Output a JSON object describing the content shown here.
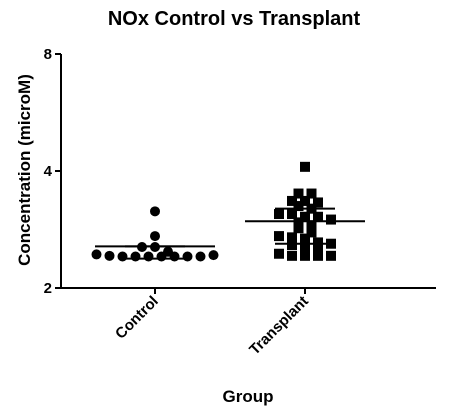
{
  "chart_data": {
    "type": "scatter",
    "title": "NOx Control vs Transplant",
    "xlabel": "Group",
    "ylabel": "Concentration  (microM)",
    "ylim": [
      2,
      8
    ],
    "yticks": [
      2,
      4,
      8
    ],
    "ytick_labels": [
      "2",
      "4",
      "8"
    ],
    "y_scale": "log",
    "categories": [
      "Control",
      "Transplant"
    ],
    "grid": false,
    "legend": "none",
    "series": [
      {
        "category": "Control",
        "marker": "circle",
        "color": "#000000",
        "values": [
          3.15,
          2.72,
          2.55,
          2.55,
          2.48,
          2.44,
          2.42,
          2.41,
          2.41,
          2.41,
          2.41,
          2.41,
          2.41,
          2.41,
          2.43
        ],
        "mean": 2.56,
        "error_upper": 2.56,
        "error_lower": 2.38
      },
      {
        "category": "Transplant",
        "marker": "square",
        "color": "#000000",
        "values": [
          4.1,
          3.5,
          3.5,
          3.35,
          3.35,
          3.32,
          3.25,
          3.2,
          3.1,
          3.1,
          3.05,
          3.05,
          3.0,
          2.95,
          2.9,
          2.85,
          2.78,
          2.72,
          2.7,
          2.68,
          2.62,
          2.6,
          2.58,
          2.55,
          2.5,
          2.45,
          2.42,
          2.42,
          2.42,
          2.42
        ],
        "mean": 2.97,
        "error_upper": 3.2,
        "error_lower": 2.6
      }
    ]
  }
}
